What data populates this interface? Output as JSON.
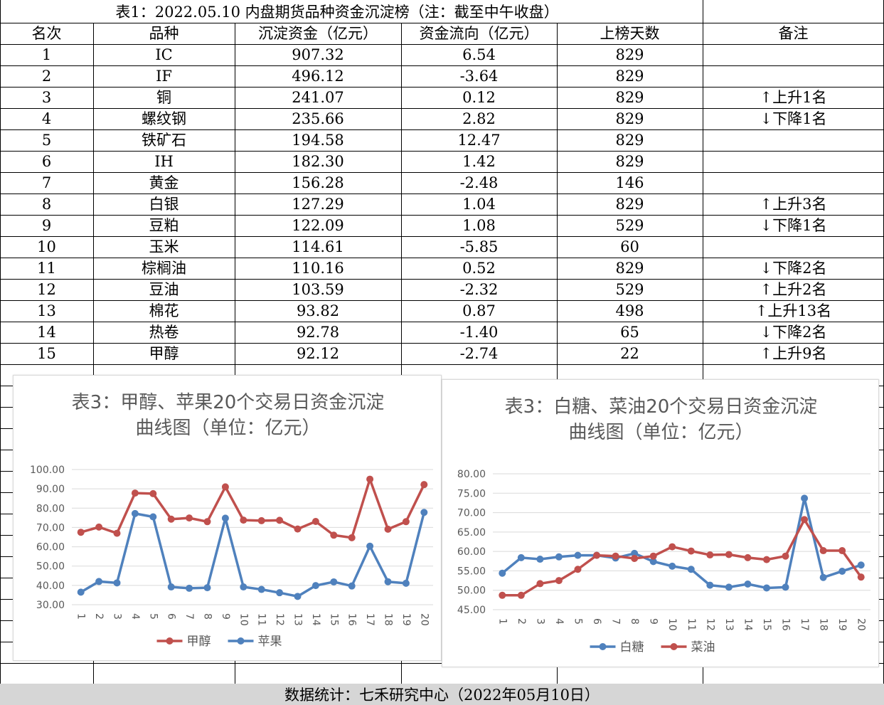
{
  "table": {
    "title": "表1：2022.05.10 内盘期货品种资金沉淀榜（注：截至中午收盘）",
    "headers": [
      "名次",
      "品种",
      "沉淀资金（亿元）",
      "资金流向（亿元）",
      "上榜天数",
      "备注"
    ],
    "rows": [
      [
        "1",
        "IC",
        "907.32",
        "6.54",
        "829",
        ""
      ],
      [
        "2",
        "IF",
        "496.12",
        "-3.64",
        "829",
        ""
      ],
      [
        "3",
        "铜",
        "241.07",
        "0.12",
        "829",
        "↑上升1名"
      ],
      [
        "4",
        "螺纹钢",
        "235.66",
        "2.82",
        "829",
        "↓下降1名"
      ],
      [
        "5",
        "铁矿石",
        "194.58",
        "12.47",
        "829",
        ""
      ],
      [
        "6",
        "IH",
        "182.30",
        "1.42",
        "829",
        ""
      ],
      [
        "7",
        "黄金",
        "156.28",
        "-2.48",
        "146",
        ""
      ],
      [
        "8",
        "白银",
        "127.29",
        "1.04",
        "829",
        "↑上升3名"
      ],
      [
        "9",
        "豆粕",
        "122.09",
        "1.08",
        "529",
        "↓下降1名"
      ],
      [
        "10",
        "玉米",
        "114.61",
        "-5.85",
        "60",
        ""
      ],
      [
        "11",
        "棕榈油",
        "110.16",
        "0.52",
        "829",
        "↓下降2名"
      ],
      [
        "12",
        "豆油",
        "103.59",
        "-2.32",
        "529",
        "↑上升2名"
      ],
      [
        "13",
        "棉花",
        "93.82",
        "0.87",
        "498",
        "↑上升13名"
      ],
      [
        "14",
        "热卷",
        "92.78",
        "-1.40",
        "65",
        "↓下降2名"
      ],
      [
        "15",
        "甲醇",
        "92.12",
        "-2.74",
        "22",
        "↑上升9名"
      ]
    ]
  },
  "footer": {
    "text": "数据统计：七禾研究中心（2022年05月10日）"
  },
  "chart_data": [
    {
      "type": "line",
      "title": [
        "表3：甲醇、苹果20个交易日资金沉淀",
        "曲线图（单位：亿元）"
      ],
      "categories": [
        "1",
        "2",
        "3",
        "4",
        "5",
        "6",
        "7",
        "8",
        "9",
        "10",
        "11",
        "12",
        "13",
        "14",
        "15",
        "16",
        "17",
        "18",
        "19",
        "20"
      ],
      "yticks": [
        "30.00",
        "40.00",
        "50.00",
        "60.00",
        "70.00",
        "80.00",
        "90.00",
        "100.00"
      ],
      "ylim": [
        30,
        100
      ],
      "grid": true,
      "legend_position": "bottom",
      "series": [
        {
          "name": "甲醇",
          "color": "#c0504d",
          "values": [
            67.5,
            70.2,
            67.0,
            87.8,
            87.5,
            74.3,
            74.9,
            73.0,
            91.0,
            73.8,
            73.5,
            73.7,
            69.2,
            73.1,
            66.0,
            64.7,
            95.0,
            69.1,
            73.0,
            92.2
          ]
        },
        {
          "name": "苹果",
          "color": "#4f81bd",
          "values": [
            36.5,
            42.0,
            41.3,
            77.2,
            75.5,
            39.2,
            38.5,
            38.8,
            74.8,
            39.2,
            37.9,
            36.2,
            34.3,
            39.9,
            41.8,
            39.7,
            60.3,
            41.9,
            41.1,
            77.8
          ]
        }
      ]
    },
    {
      "type": "line",
      "title": [
        "表3：白糖、菜油20个交易日资金沉淀",
        "曲线图（单位：亿元）"
      ],
      "categories": [
        "1",
        "2",
        "3",
        "4",
        "5",
        "6",
        "7",
        "8",
        "9",
        "10",
        "11",
        "12",
        "13",
        "14",
        "15",
        "16",
        "17",
        "18",
        "19",
        "20"
      ],
      "yticks": [
        "45.00",
        "50.00",
        "55.00",
        "60.00",
        "65.00",
        "70.00",
        "75.00",
        "80.00"
      ],
      "ylim": [
        45,
        80
      ],
      "grid": true,
      "legend_position": "bottom",
      "series": [
        {
          "name": "白糖",
          "color": "#4f81bd",
          "values": [
            54.4,
            58.4,
            58.0,
            58.6,
            59.0,
            59.0,
            58.3,
            59.5,
            57.4,
            56.2,
            55.4,
            51.3,
            50.8,
            51.6,
            50.6,
            50.8,
            73.7,
            53.3,
            54.9,
            56.5
          ]
        },
        {
          "name": "菜油",
          "color": "#c0504d",
          "values": [
            48.7,
            48.7,
            51.7,
            52.5,
            55.4,
            59.0,
            58.8,
            58.2,
            58.8,
            61.2,
            60.1,
            59.1,
            59.2,
            58.4,
            57.9,
            58.8,
            68.2,
            60.2,
            60.2,
            53.4
          ]
        }
      ]
    }
  ]
}
